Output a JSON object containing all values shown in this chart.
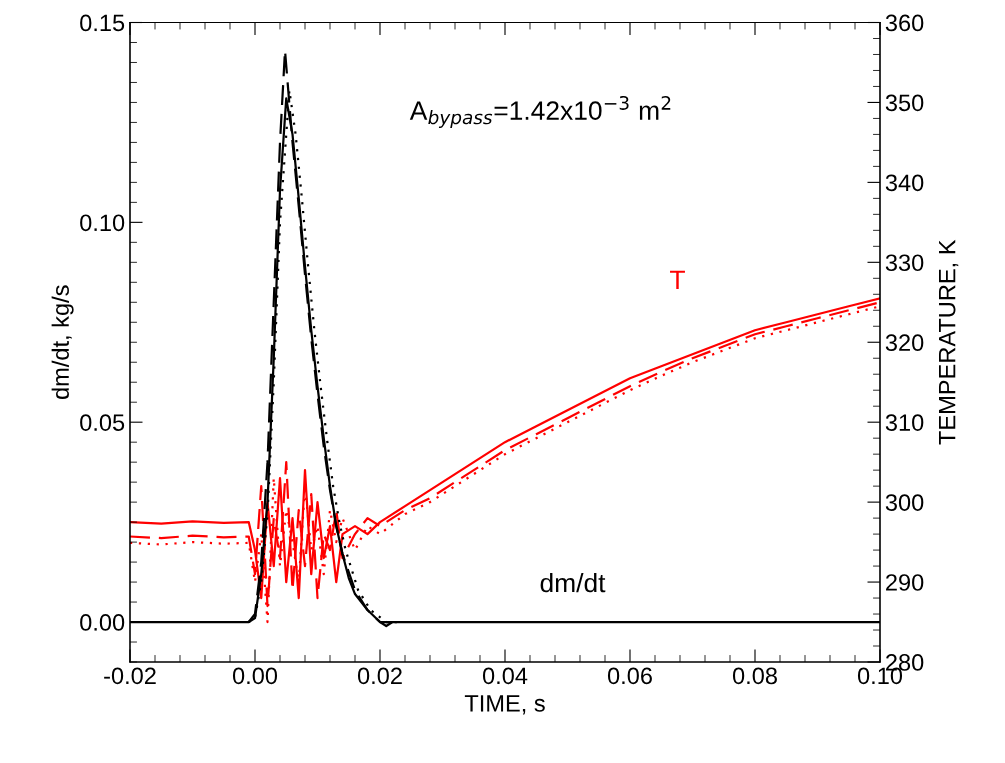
{
  "chart_data": {
    "type": "line",
    "xlabel": "TIME, s",
    "ylabel": "dm/dt, kg/s",
    "y2label": "TEMPERATURE, K",
    "xlim": [
      -0.02,
      0.1
    ],
    "xticks": [
      {
        "value": -0.02,
        "label": "-0.02"
      },
      {
        "value": 0,
        "label": "0.00"
      },
      {
        "value": 0.02,
        "label": "0.02"
      },
      {
        "value": 0.04,
        "label": "0.04"
      },
      {
        "value": 0.06,
        "label": "0.06"
      },
      {
        "value": 0.08,
        "label": "0.08"
      },
      {
        "value": 0.1,
        "label": "0.10"
      }
    ],
    "ylim": [
      -0.01,
      0.15
    ],
    "yticks": [
      {
        "value": 0,
        "label": "0.00"
      },
      {
        "value": 0.05,
        "label": "0.05"
      },
      {
        "value": 0.1,
        "label": "0.10"
      },
      {
        "value": 0.15,
        "label": "0.15"
      }
    ],
    "y2lim": [
      280,
      360
    ],
    "y2ticks": [
      280,
      290,
      300,
      310,
      320,
      330,
      340,
      350,
      360
    ],
    "grid": false,
    "legend": false,
    "annotations": [
      "A$_{bypass}$=1.42x10$^{−3}$ m$^{2}$",
      "T",
      "dm/dt"
    ],
    "series": [
      {
        "color": "#ff0000",
        "axis": "y2",
        "line_style": "solid",
        "x": [
          -0.02,
          -0.015,
          -0.01,
          -0.005,
          -0.001,
          0.0,
          0.001,
          0.002,
          0.003,
          0.004,
          0.005,
          0.006,
          0.007,
          0.008,
          0.009,
          0.01,
          0.011,
          0.012,
          0.013,
          0.014,
          0.016,
          0.018,
          0.02,
          0.024,
          0.028,
          0.032,
          0.036,
          0.04,
          0.045,
          0.05,
          0.055,
          0.06,
          0.065,
          0.07,
          0.075,
          0.08,
          0.085,
          0.09,
          0.095,
          0.1
        ],
        "values": [
          297.5,
          297.3,
          297.6,
          297.4,
          297.5,
          294,
          288,
          300,
          292,
          303,
          290,
          298,
          288,
          304,
          291,
          300,
          293,
          297,
          290,
          296,
          297,
          296,
          297.5,
          299.5,
          301.5,
          303.5,
          305.5,
          307.5,
          309.5,
          311.5,
          313.5,
          315.5,
          317,
          318.5,
          320,
          321.5,
          322.5,
          323.5,
          324.5,
          325.5
        ]
      },
      {
        "color": "#ff0000",
        "axis": "y2",
        "line_style": "dashed",
        "x": [
          -0.02,
          -0.015,
          -0.01,
          -0.005,
          -0.001,
          0.0,
          0.001,
          0.002,
          0.003,
          0.004,
          0.005,
          0.006,
          0.007,
          0.008,
          0.009,
          0.01,
          0.011,
          0.012,
          0.013,
          0.014,
          0.016,
          0.018,
          0.02,
          0.024,
          0.028,
          0.032,
          0.036,
          0.04,
          0.045,
          0.05,
          0.055,
          0.06,
          0.065,
          0.07,
          0.075,
          0.08,
          0.085,
          0.09,
          0.095,
          0.1
        ],
        "values": [
          295.7,
          295.5,
          295.8,
          295.6,
          295.7,
          291,
          302,
          287,
          298,
          293,
          305,
          289,
          299,
          292,
          301,
          288,
          296,
          294,
          299,
          293,
          296,
          298,
          297,
          299,
          300.5,
          302.5,
          304.5,
          306.5,
          308.5,
          310.5,
          312.5,
          314.5,
          316.3,
          318,
          319.5,
          321,
          322,
          323,
          324,
          325
        ]
      },
      {
        "color": "#ff0000",
        "axis": "y2",
        "line_style": "dotted",
        "x": [
          -0.02,
          -0.015,
          -0.01,
          -0.005,
          -0.001,
          0.0,
          0.001,
          0.002,
          0.003,
          0.004,
          0.005,
          0.006,
          0.007,
          0.008,
          0.009,
          0.01,
          0.011,
          0.012,
          0.013,
          0.014,
          0.016,
          0.018,
          0.02,
          0.024,
          0.028,
          0.032,
          0.036,
          0.04,
          0.045,
          0.05,
          0.055,
          0.06,
          0.065,
          0.07,
          0.075,
          0.08,
          0.085,
          0.09,
          0.095,
          0.1
        ],
        "values": [
          294.9,
          294.7,
          295.0,
          294.8,
          294.9,
          290,
          296,
          285,
          303,
          292,
          299,
          295,
          290,
          302,
          294,
          297,
          291,
          299,
          295,
          298,
          294,
          297,
          296,
          298.5,
          300,
          302,
          304,
          306,
          308,
          310,
          312,
          314,
          315.8,
          317.5,
          319,
          320.5,
          321.5,
          322.5,
          323.5,
          324.5
        ]
      },
      {
        "color": "#000000",
        "line_style": "solid",
        "x": [
          -0.02,
          -0.001,
          0.0,
          0.001,
          0.002,
          0.003,
          0.004,
          0.005,
          0.006,
          0.007,
          0.008,
          0.009,
          0.01,
          0.011,
          0.012,
          0.013,
          0.014,
          0.015,
          0.016,
          0.018,
          0.02,
          0.021,
          0.022,
          0.1
        ],
        "values": [
          0,
          0,
          0.001,
          0.012,
          0.03,
          0.066,
          0.108,
          0.131,
          0.122,
          0.106,
          0.089,
          0.073,
          0.059,
          0.046,
          0.034,
          0.024,
          0.017,
          0.011,
          0.007,
          0.003,
          0.0,
          -0.001,
          0,
          0
        ]
      },
      {
        "color": "#000000",
        "line_style": "dashed",
        "x": [
          -0.001,
          0.0,
          0.001,
          0.002,
          0.003,
          0.004,
          0.0048,
          0.006,
          0.007,
          0.008,
          0.009,
          0.01,
          0.011,
          0.012,
          0.013,
          0.014,
          0.016,
          0.018,
          0.02,
          0.022
        ],
        "values": [
          0,
          0.002,
          0.015,
          0.04,
          0.08,
          0.12,
          0.143,
          0.12,
          0.104,
          0.087,
          0.071,
          0.057,
          0.044,
          0.033,
          0.024,
          0.017,
          0.008,
          0.003,
          0.0,
          0
        ]
      },
      {
        "color": "#000000",
        "line_style": "dotted",
        "x": [
          -0.001,
          0.0,
          0.001,
          0.002,
          0.003,
          0.004,
          0.0055,
          0.0065,
          0.0075,
          0.0085,
          0.0095,
          0.0105,
          0.0115,
          0.0125,
          0.0135,
          0.0145,
          0.0165,
          0.0185,
          0.021,
          0.023
        ],
        "values": [
          0,
          0.001,
          0.01,
          0.027,
          0.06,
          0.1,
          0.133,
          0.122,
          0.106,
          0.089,
          0.073,
          0.059,
          0.046,
          0.034,
          0.025,
          0.018,
          0.008,
          0.003,
          0.0,
          0
        ]
      }
    ]
  }
}
